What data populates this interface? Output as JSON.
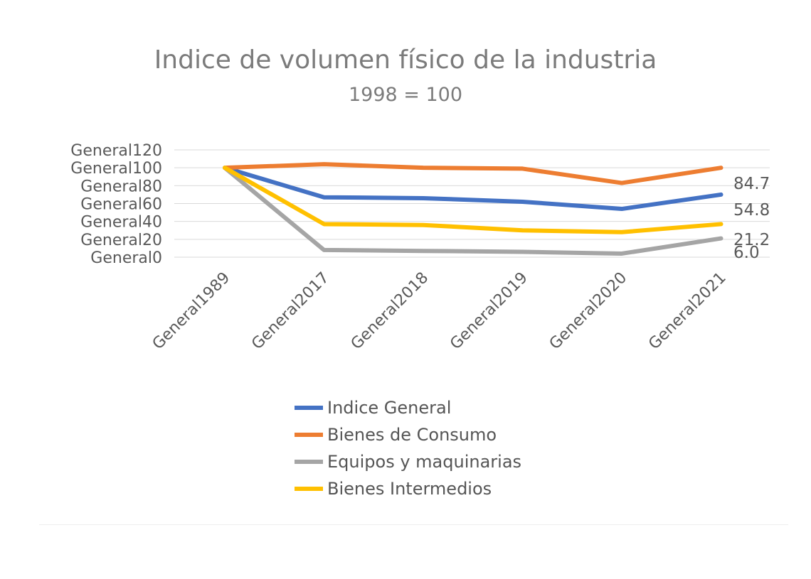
{
  "chart_data": {
    "type": "line",
    "title": "Indice de volumen físico de la industria",
    "subtitle": "1998 = 100",
    "categories": [
      "General1989",
      "General2017",
      "General2018",
      "General2019",
      "General2020",
      "General2021"
    ],
    "y_tick_labels": [
      "General0",
      "General20",
      "General40",
      "General60",
      "General80",
      "General100",
      "General120"
    ],
    "y_ticks": [
      0,
      20,
      40,
      60,
      80,
      100,
      120
    ],
    "ylim": [
      0,
      120
    ],
    "grid": true,
    "legend_position": "bottom",
    "series": [
      {
        "name": "Indice General",
        "color": "#4472c4",
        "values": [
          100,
          67,
          66,
          62,
          54,
          70
        ]
      },
      {
        "name": "Bienes de Consumo",
        "color": "#ed7d31",
        "values": [
          100,
          104,
          100,
          99,
          83,
          100
        ]
      },
      {
        "name": "Equipos y maquinarias",
        "color": "#a5a5a5",
        "values": [
          100,
          8,
          7,
          6,
          4,
          21
        ]
      },
      {
        "name": "Bienes Intermedios",
        "color": "#ffc000",
        "values": [
          100,
          37,
          36,
          30,
          28,
          37
        ]
      }
    ],
    "annotations": [
      "84.7",
      "54.8",
      "21.2",
      "6.0"
    ]
  }
}
